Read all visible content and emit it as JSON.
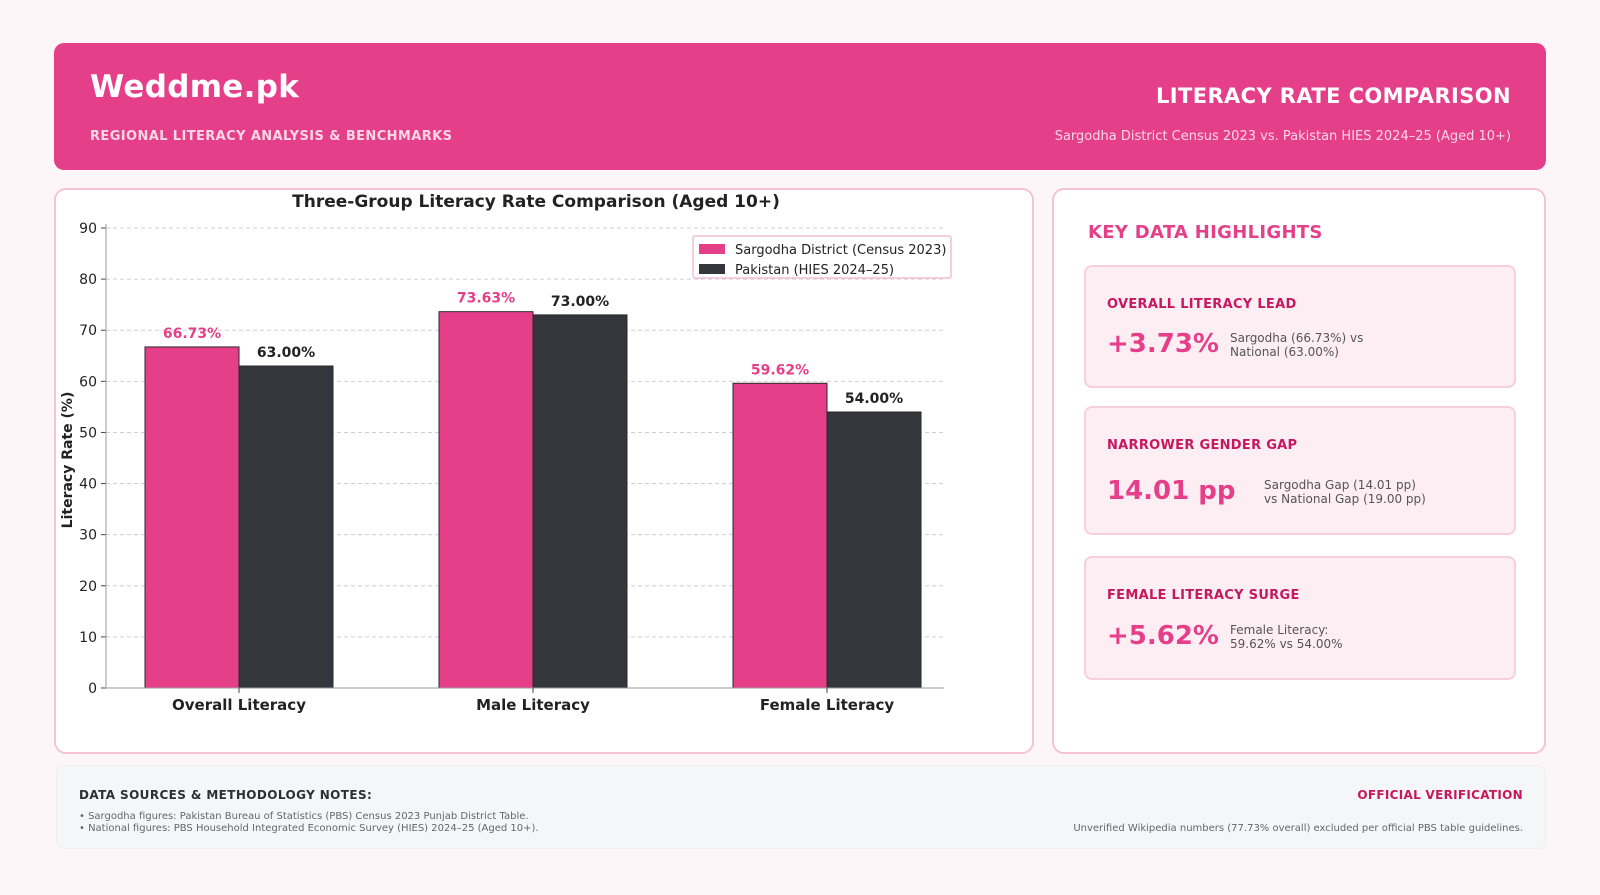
{
  "header": {
    "brand": "Weddme.pk",
    "subtitle": "REGIONAL LITERACY ANALYSIS & BENCHMARKS",
    "title": "LITERACY RATE COMPARISON",
    "description": "Sargodha District Census 2023 vs. Pakistan HIES 2024–25 (Aged 10+)"
  },
  "colors": {
    "accent": "#e63f8a",
    "dark": "#33363b"
  },
  "chart_data": {
    "type": "bar",
    "title": "Three-Group Literacy Rate Comparison (Aged 10+)",
    "xlabel": "",
    "ylabel": "Literacy Rate (%)",
    "ylim": [
      0,
      90
    ],
    "yticks": [
      0,
      10,
      20,
      30,
      40,
      50,
      60,
      70,
      80,
      90
    ],
    "grid": "horizontal dashed",
    "legend_position": "top-right",
    "categories": [
      "Overall Literacy",
      "Male Literacy",
      "Female Literacy"
    ],
    "series": [
      {
        "name": "Sargodha District (Census 2023)",
        "color": "#e63f8a",
        "values": [
          66.73,
          73.63,
          59.62
        ],
        "labels": [
          "66.73%",
          "73.63%",
          "59.62%"
        ]
      },
      {
        "name": "Pakistan (HIES 2024–25)",
        "color": "#33363b",
        "values": [
          63.0,
          73.0,
          54.0
        ],
        "labels": [
          "63.00%",
          "73.00%",
          "54.00%"
        ]
      }
    ]
  },
  "highlights": {
    "title": "KEY DATA HIGHLIGHTS",
    "cards": [
      {
        "title": "OVERALL LITERACY LEAD",
        "value": "+3.73%",
        "desc": "Sargodha (66.73%) vs\nNational (63.00%)"
      },
      {
        "title": "NARROWER GENDER GAP",
        "value": "14.01 pp",
        "desc": "Sargodha Gap (14.01 pp)\nvs National Gap (19.00 pp)"
      },
      {
        "title": "FEMALE LITERACY SURGE",
        "value": "+5.62%",
        "desc": "Female Literacy:\n59.62% vs 54.00%"
      }
    ]
  },
  "footer": {
    "title": "DATA SOURCES & METHODOLOGY NOTES:",
    "notes": [
      "• Sargodha figures: Pakistan Bureau of Statistics (PBS) Census 2023 Punjab District Table.",
      "• National figures: PBS Household Integrated Economic Survey (HIES) 2024–25 (Aged 10+)."
    ],
    "verification_title": "OFFICIAL VERIFICATION",
    "verification_note": "Unverified Wikipedia numbers (77.73% overall) excluded per official PBS table guidelines."
  }
}
